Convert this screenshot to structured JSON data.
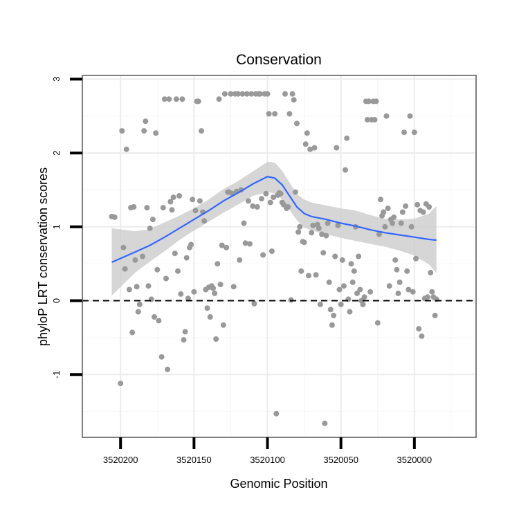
{
  "chart_data": {
    "type": "scatter",
    "title": "Conservation",
    "xlabel": "Genomic Position",
    "ylabel": "phyloP LRT conservation scores",
    "x_reversed": true,
    "xlim": [
      3520226,
      3519958
    ],
    "ylim": [
      -1.85,
      3.05
    ],
    "x_ticks": [
      3520200,
      3520150,
      3520100,
      3520050,
      3520000
    ],
    "x_tick_labels": [
      "3520200",
      "3520150",
      "3520100",
      "3520050",
      "3520000"
    ],
    "y_ticks": [
      -1,
      0,
      1,
      2,
      3
    ],
    "y_tick_labels": [
      "-1",
      "0",
      "1",
      "2",
      "3"
    ],
    "grid": true,
    "reference_line": {
      "y": 0,
      "style": "dashed"
    },
    "colors": {
      "points": "#999999",
      "smooth_line": "#3366ff",
      "ribbon": "#cccccc"
    },
    "points": [
      [
        3520206,
        1.14
      ],
      [
        3520204,
        1.13
      ],
      [
        3520200,
        -1.12
      ],
      [
        3520199,
        2.3
      ],
      [
        3520198,
        0.72
      ],
      [
        3520197,
        0.43
      ],
      [
        3520196,
        2.05
      ],
      [
        3520194,
        0.15
      ],
      [
        3520193,
        1.26
      ],
      [
        3520192,
        -0.43
      ],
      [
        3520191,
        1.27
      ],
      [
        3520190,
        0.55
      ],
      [
        3520189,
        0.19
      ],
      [
        3520188,
        -0.15
      ],
      [
        3520187,
        -0.05
      ],
      [
        3520185,
        0.6
      ],
      [
        3520184,
        2.3
      ],
      [
        3520183,
        2.43
      ],
      [
        3520182,
        1.26
      ],
      [
        3520181,
        0.2
      ],
      [
        3520180,
        0.98
      ],
      [
        3520179,
        0.02
      ],
      [
        3520178,
        1.1
      ],
      [
        3520177,
        -0.22
      ],
      [
        3520176,
        2.27
      ],
      [
        3520175,
        0.42
      ],
      [
        3520174,
        -0.27
      ],
      [
        3520172,
        -0.76
      ],
      [
        3520171,
        1.26
      ],
      [
        3520170,
        2.73
      ],
      [
        3520169,
        0.3
      ],
      [
        3520168,
        -0.93
      ],
      [
        3520167,
        2.73
      ],
      [
        3520166,
        1.34
      ],
      [
        3520165,
        1.23
      ],
      [
        3520164,
        1.4
      ],
      [
        3520163,
        0.64
      ],
      [
        3520162,
        2.73
      ],
      [
        3520161,
        0.4
      ],
      [
        3520160,
        1.42
      ],
      [
        3520159,
        0.09
      ],
      [
        3520158,
        2.73
      ],
      [
        3520157,
        -0.53
      ],
      [
        3520156,
        -0.42
      ],
      [
        3520155,
        0.58
      ],
      [
        3520154,
        0.03
      ],
      [
        3520153,
        0.72
      ],
      [
        3520152,
        0.76
      ],
      [
        3520151,
        1.37
      ],
      [
        3520150,
        0.12
      ],
      [
        3520149,
        1.22
      ],
      [
        3520148,
        2.7
      ],
      [
        3520147,
        2.7
      ],
      [
        3520146,
        1.35
      ],
      [
        3520145,
        2.3
      ],
      [
        3520144,
        1.2
      ],
      [
        3520143,
        1.08
      ],
      [
        3520142,
        0.15
      ],
      [
        3520141,
        -0.1
      ],
      [
        3520140,
        0.18
      ],
      [
        3520139,
        -0.22
      ],
      [
        3520138,
        0.2
      ],
      [
        3520137,
        0.17
      ],
      [
        3520136,
        0.1
      ],
      [
        3520135,
        -0.52
      ],
      [
        3520134,
        0.5
      ],
      [
        3520133,
        2.73
      ],
      [
        3520132,
        0.22
      ],
      [
        3520131,
        0.75
      ],
      [
        3520130,
        -0.33
      ],
      [
        3520129,
        2.8
      ],
      [
        3520128,
        0.72
      ],
      [
        3520127,
        1.47
      ],
      [
        3520126,
        1.47
      ],
      [
        3520125,
        2.8
      ],
      [
        3520124,
        1.45
      ],
      [
        3520123,
        0.19
      ],
      [
        3520122,
        2.8
      ],
      [
        3520121,
        1.48
      ],
      [
        3520120,
        2.8
      ],
      [
        3520119,
        0.55
      ],
      [
        3520118,
        1.5
      ],
      [
        3520117,
        2.8
      ],
      [
        3520116,
        1.05
      ],
      [
        3520115,
        0.78
      ],
      [
        3520114,
        2.8
      ],
      [
        3520113,
        1.35
      ],
      [
        3520112,
        0.77
      ],
      [
        3520111,
        2.8
      ],
      [
        3520110,
        1.28
      ],
      [
        3520109,
        -0.04
      ],
      [
        3520108,
        2.8
      ],
      [
        3520107,
        1.27
      ],
      [
        3520106,
        2.8
      ],
      [
        3520105,
        2.8
      ],
      [
        3520104,
        1.38
      ],
      [
        3520103,
        0.62
      ],
      [
        3520102,
        2.8
      ],
      [
        3520101,
        1.45
      ],
      [
        3520100,
        2.8
      ],
      [
        3520099,
        2.53
      ],
      [
        3520098,
        1.33
      ],
      [
        3520097,
        0.67
      ],
      [
        3520096,
        1.4
      ],
      [
        3520095,
        2.53
      ],
      [
        3520094,
        -1.53
      ],
      [
        3520093,
        1.43
      ],
      [
        3520092,
        1.46
      ],
      [
        3520091,
        1.45
      ],
      [
        3520090,
        1.33
      ],
      [
        3520089,
        1.3
      ],
      [
        3520088,
        2.8
      ],
      [
        3520087,
        1.25
      ],
      [
        3520086,
        1.27
      ],
      [
        3520085,
        2.53
      ],
      [
        3520084,
        0.01
      ],
      [
        3520083,
        2.8
      ],
      [
        3520082,
        2.72
      ],
      [
        3520081,
        1.47
      ],
      [
        3520080,
        2.4
      ],
      [
        3520079,
        0.93
      ],
      [
        3520078,
        1.0
      ],
      [
        3520077,
        0.4
      ],
      [
        3520076,
        0.8
      ],
      [
        3520075,
        0.79
      ],
      [
        3520074,
        2.12
      ],
      [
        3520073,
        2.27
      ],
      [
        3520072,
        0.34
      ],
      [
        3520071,
        2.05
      ],
      [
        3520070,
        0.92
      ],
      [
        3520069,
        1.02
      ],
      [
        3520068,
        2.07
      ],
      [
        3520067,
        0.35
      ],
      [
        3520066,
        1.03
      ],
      [
        3520065,
        0.98
      ],
      [
        3520064,
        -0.05
      ],
      [
        3520063,
        0.9
      ],
      [
        3520062,
        0.65
      ],
      [
        3520061,
        -1.66
      ],
      [
        3520060,
        0.88
      ],
      [
        3520059,
        1.05
      ],
      [
        3520058,
        0.25
      ],
      [
        3520057,
        -0.12
      ],
      [
        3520056,
        -0.33
      ],
      [
        3520055,
        -0.2
      ],
      [
        3520054,
        0.6
      ],
      [
        3520053,
        2.07
      ],
      [
        3520052,
        1.02
      ],
      [
        3520051,
        0.15
      ],
      [
        3520050,
        -0.05
      ],
      [
        3520049,
        0.55
      ],
      [
        3520048,
        0.2
      ],
      [
        3520047,
        1.77
      ],
      [
        3520046,
        2.2
      ],
      [
        3520045,
        0.02
      ],
      [
        3520044,
        -0.15
      ],
      [
        3520043,
        0.5
      ],
      [
        3520042,
        0.25
      ],
      [
        3520041,
        0.4
      ],
      [
        3520040,
        1.0
      ],
      [
        3520039,
        0.1
      ],
      [
        3520038,
        0.6
      ],
      [
        3520037,
        0.15
      ],
      [
        3520036,
        0.0
      ],
      [
        3520035,
        -0.05
      ],
      [
        3520034,
        0.05
      ],
      [
        3520033,
        2.7
      ],
      [
        3520032,
        2.45
      ],
      [
        3520031,
        2.7
      ],
      [
        3520030,
        0.12
      ],
      [
        3520029,
        2.45
      ],
      [
        3520028,
        2.7
      ],
      [
        3520027,
        2.45
      ],
      [
        3520026,
        2.7
      ],
      [
        3520025,
        -0.3
      ],
      [
        3520024,
        0.9
      ],
      [
        3520023,
        1.37
      ],
      [
        3520022,
        1.15
      ],
      [
        3520021,
        1.2
      ],
      [
        3520020,
        1.0
      ],
      [
        3520019,
        2.5
      ],
      [
        3520018,
        1.25
      ],
      [
        3520017,
        0.2
      ],
      [
        3520016,
        1.1
      ],
      [
        3520015,
        1.05
      ],
      [
        3520014,
        1.13
      ],
      [
        3520013,
        0.55
      ],
      [
        3520012,
        0.42
      ],
      [
        3520011,
        0.1
      ],
      [
        3520010,
        0.25
      ],
      [
        3520009,
        1.05
      ],
      [
        3520008,
        1.2
      ],
      [
        3520007,
        2.28
      ],
      [
        3520006,
        1.28
      ],
      [
        3520005,
        0.4
      ],
      [
        3520004,
        0.15
      ],
      [
        3520003,
        2.5
      ],
      [
        3520002,
        1.0
      ],
      [
        3520001,
        0.12
      ],
      [
        3520000,
        2.28
      ],
      [
        3519999,
        0.57
      ],
      [
        3519998,
        1.3
      ],
      [
        3519997,
        -0.38
      ],
      [
        3519996,
        1.22
      ],
      [
        3519995,
        -0.48
      ],
      [
        3519994,
        1.2
      ],
      [
        3519993,
        0.03
      ],
      [
        3519992,
        1.31
      ],
      [
        3519991,
        0.05
      ],
      [
        3519990,
        1.27
      ],
      [
        3519989,
        0.38
      ],
      [
        3519988,
        0.12
      ],
      [
        3519987,
        0.05
      ],
      [
        3519986,
        -0.2
      ],
      [
        3519985,
        0.02
      ]
    ],
    "smooth": {
      "method": "loess",
      "x": [
        3520206,
        3520190,
        3520180,
        3520170,
        3520160,
        3520150,
        3520140,
        3520130,
        3520120,
        3520110,
        3520100,
        3520095,
        3520090,
        3520085,
        3520080,
        3520075,
        3520070,
        3520060,
        3520050,
        3520040,
        3520030,
        3520020,
        3520010,
        3520000,
        3519990,
        3519985
      ],
      "y": [
        0.52,
        0.66,
        0.75,
        0.86,
        0.98,
        1.1,
        1.22,
        1.35,
        1.46,
        1.58,
        1.68,
        1.66,
        1.57,
        1.42,
        1.27,
        1.18,
        1.14,
        1.1,
        1.05,
        1.01,
        0.96,
        0.92,
        0.89,
        0.86,
        0.83,
        0.82
      ],
      "lower": [
        0.07,
        0.38,
        0.53,
        0.67,
        0.82,
        0.95,
        1.07,
        1.19,
        1.3,
        1.42,
        1.47,
        1.45,
        1.37,
        1.23,
        1.09,
        0.99,
        0.95,
        0.9,
        0.85,
        0.81,
        0.77,
        0.73,
        0.68,
        0.61,
        0.49,
        0.37
      ],
      "upper": [
        0.98,
        0.94,
        0.97,
        1.06,
        1.15,
        1.25,
        1.37,
        1.51,
        1.62,
        1.75,
        1.88,
        1.87,
        1.76,
        1.6,
        1.44,
        1.37,
        1.33,
        1.29,
        1.25,
        1.22,
        1.16,
        1.11,
        1.1,
        1.11,
        1.18,
        1.28
      ]
    }
  }
}
